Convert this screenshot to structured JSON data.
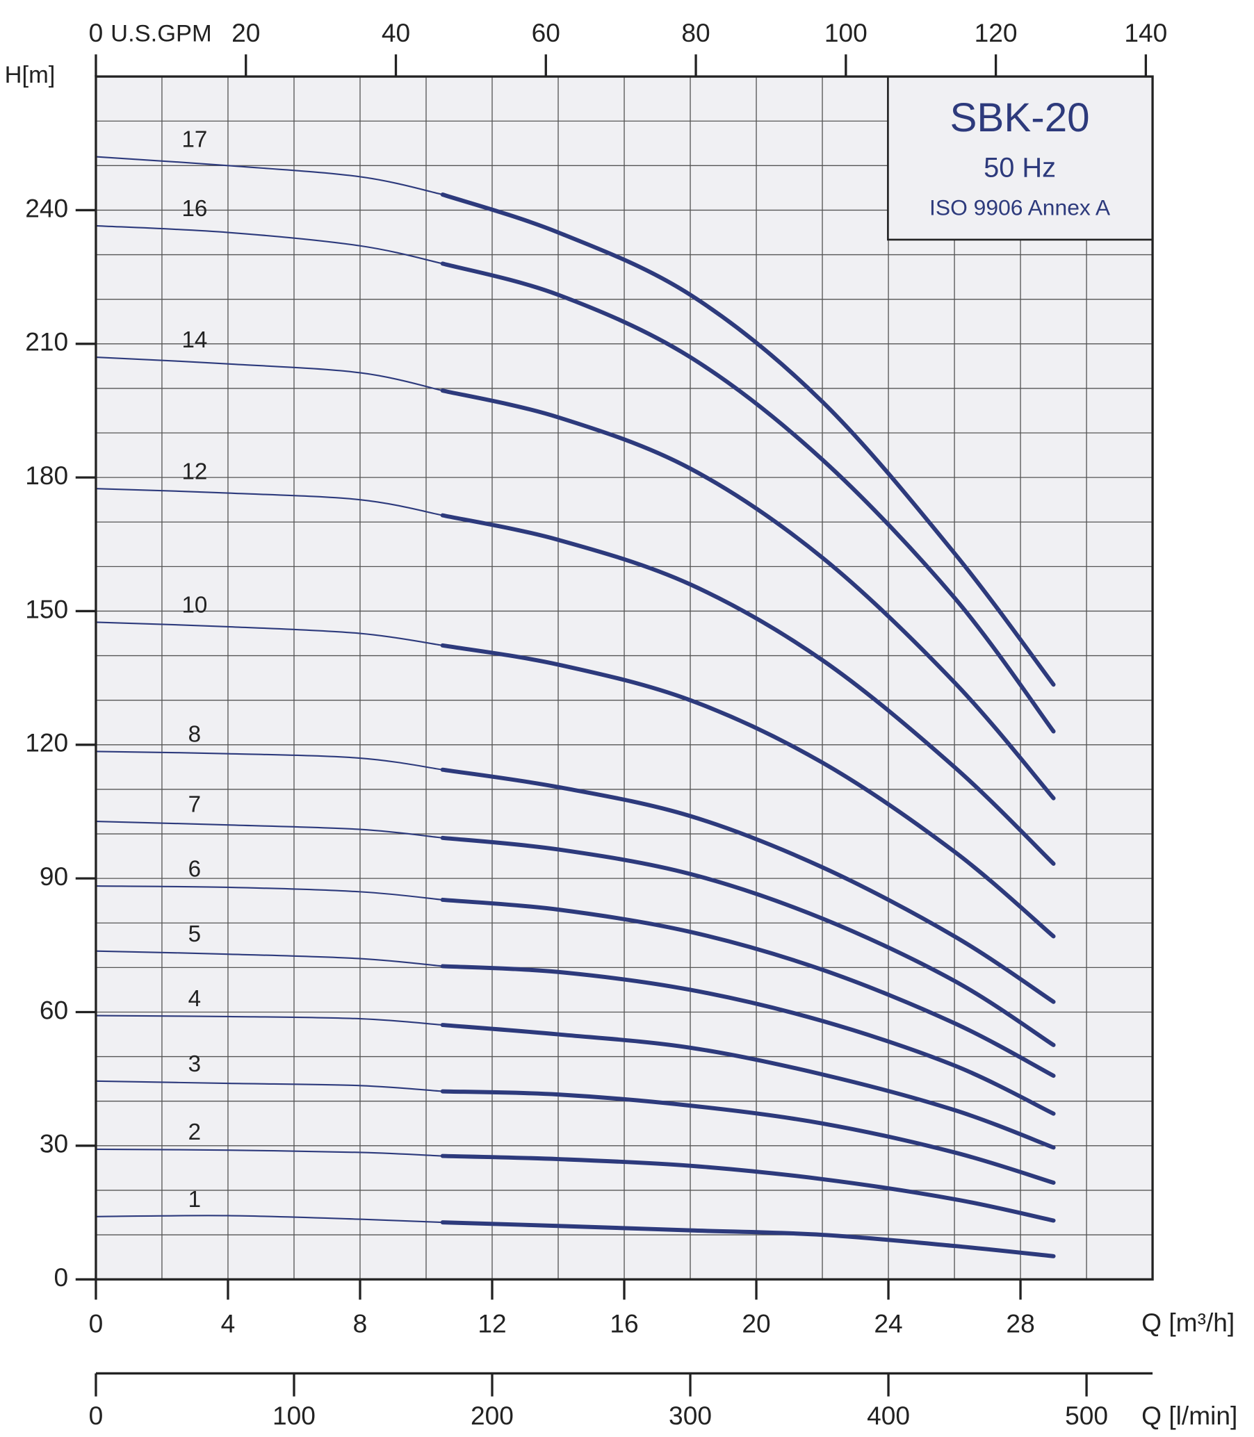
{
  "chart_data": {
    "type": "line",
    "title": "SBK-20",
    "subtitle": "50 Hz",
    "annotation": "ISO 9906 Annex A",
    "ylabel": "H[m]",
    "xlabel": "Q [m³/h]",
    "x2label": "U.S.GPM",
    "x3label": "Q [l/min]",
    "color": "#2d3a7c",
    "thick_from": 10.5,
    "x": [
      0,
      4,
      8,
      10.5,
      14,
      18,
      22,
      26,
      29
    ],
    "series": [
      {
        "name": "17",
        "values": [
          252,
          250,
          247.5,
          243.5,
          235,
          221,
          197,
          163,
          133.5
        ]
      },
      {
        "name": "16",
        "values": [
          236.5,
          235,
          232,
          228,
          221,
          207,
          184,
          153,
          123
        ]
      },
      {
        "name": "14",
        "values": [
          207,
          205.5,
          203.5,
          199.5,
          193.5,
          182,
          162,
          134,
          108
        ]
      },
      {
        "name": "12",
        "values": [
          177.5,
          176.5,
          175,
          171.5,
          166,
          156,
          139,
          115,
          93.3
        ]
      },
      {
        "name": "10",
        "values": [
          147.5,
          146.5,
          145,
          142.3,
          138,
          130,
          116,
          96,
          77
        ]
      },
      {
        "name": "8",
        "values": [
          118.5,
          118,
          117,
          114.4,
          110.5,
          104,
          92.5,
          77,
          62.3
        ]
      },
      {
        "name": "7",
        "values": [
          102.8,
          102,
          101,
          99.1,
          96.5,
          91,
          81,
          67,
          52.6
        ]
      },
      {
        "name": "6",
        "values": [
          88.3,
          88,
          87,
          85.2,
          83,
          78,
          69.5,
          57.5,
          45.7
        ]
      },
      {
        "name": "5",
        "values": [
          73.7,
          73,
          72,
          70.3,
          69,
          65,
          58,
          48,
          37.2
        ]
      },
      {
        "name": "4",
        "values": [
          59.2,
          59,
          58.5,
          57.1,
          55,
          52,
          46,
          38,
          29.6
        ]
      },
      {
        "name": "3",
        "values": [
          44.5,
          44,
          43.5,
          42.2,
          41.5,
          39,
          35,
          28.5,
          21.7
        ]
      },
      {
        "name": "2",
        "values": [
          29.2,
          29,
          28.5,
          27.7,
          27,
          25.5,
          22.5,
          18,
          13.2
        ]
      },
      {
        "name": "1",
        "values": [
          14.1,
          14.3,
          13.5,
          12.8,
          12,
          11,
          10,
          7.5,
          5.2
        ]
      }
    ],
    "xlim": [
      0,
      32
    ],
    "xticks": [
      0,
      4,
      8,
      12,
      16,
      20,
      24,
      28
    ],
    "xgrid": [
      0,
      2,
      4,
      6,
      8,
      10,
      12,
      14,
      16,
      18,
      20,
      22,
      24,
      26,
      28,
      30,
      32
    ],
    "ylim": [
      0,
      270
    ],
    "yticks": [
      0,
      30,
      60,
      90,
      120,
      150,
      180,
      210,
      240
    ],
    "ygrid": [
      0,
      10,
      20,
      30,
      40,
      50,
      60,
      70,
      80,
      90,
      100,
      110,
      120,
      130,
      140,
      150,
      160,
      170,
      180,
      190,
      200,
      210,
      220,
      230,
      240,
      250,
      260,
      270
    ],
    "x2lim": [
      0,
      140.9
    ],
    "x2ticks": [
      0,
      20,
      40,
      60,
      80,
      100,
      120,
      140
    ],
    "x3lim": [
      0,
      533.33
    ],
    "x3ticks": [
      0,
      100,
      200,
      300,
      400,
      500
    ],
    "grid": true
  }
}
